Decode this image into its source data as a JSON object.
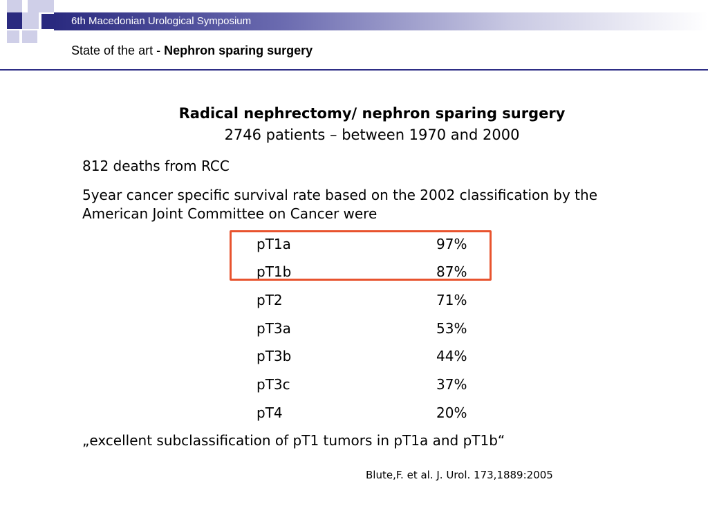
{
  "header": {
    "symposium": "6th Macedonian Urological Symposium",
    "subtitle_prefix": "State of the art - ",
    "subtitle_bold": "Nephron sparing surgery"
  },
  "colors": {
    "header_dark": "#2a2a7f",
    "header_light": "#c9c9e3",
    "rule": "#2e2e86",
    "highlight_box": "#e8532e"
  },
  "content": {
    "title_line1": "Radical nephrectomy/ nephron sparing surgery",
    "title_line2": "2746 patients – between 1970 and 2000",
    "deaths": "812 deaths from RCC",
    "survival_intro": "5year cancer specific survival rate based on the 2002 classification by the American Joint Committee on Cancer were",
    "rows": [
      {
        "stage": "pT1a",
        "rate": "97%"
      },
      {
        "stage": "pT1b",
        "rate": "87%"
      },
      {
        "stage": "pT2",
        "rate": "71%"
      },
      {
        "stage": "pT3a",
        "rate": "53%"
      },
      {
        "stage": "pT3b",
        "rate": "44%"
      },
      {
        "stage": "pT3c",
        "rate": "37%"
      },
      {
        "stage": "pT4",
        "rate": "20%"
      }
    ],
    "quote": "„excellent subclassification of pT1 tumors in pT1a and pT1b“",
    "citation": "Blute,F. et al. J. Urol. 173,1889:2005"
  }
}
